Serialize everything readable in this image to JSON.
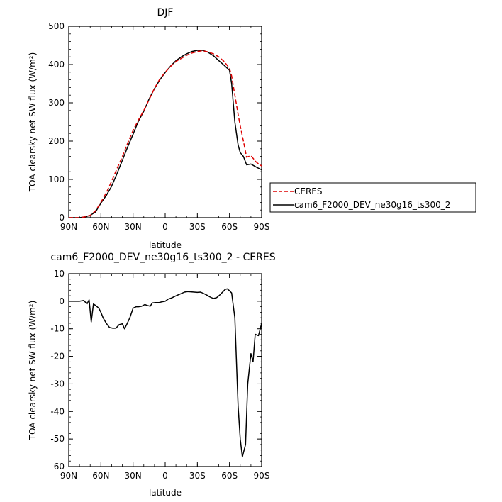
{
  "chart_data": [
    {
      "type": "line",
      "title": "DJF",
      "xlabel": "latitude",
      "ylabel": "TOA clearsky net SW flux (W/m²)",
      "xlim": [
        -90,
        90
      ],
      "ylim": [
        0,
        500
      ],
      "xticks": [
        "90N",
        "60N",
        "30N",
        "0",
        "30S",
        "60S",
        "90S"
      ],
      "yticks": [
        "0",
        "100",
        "200",
        "300",
        "400",
        "500"
      ],
      "legend_position": "right",
      "series": [
        {
          "name": "CERES",
          "style": "dashed",
          "color": "#dd0000",
          "x": [
            -90,
            -80,
            -75,
            -70,
            -65,
            -60,
            -55,
            -50,
            -45,
            -40,
            -35,
            -30,
            -25,
            -20,
            -15,
            -10,
            -5,
            0,
            5,
            10,
            15,
            20,
            25,
            30,
            35,
            40,
            45,
            50,
            55,
            60,
            62,
            65,
            68,
            70,
            73,
            76,
            80,
            85,
            90
          ],
          "y": [
            0,
            0,
            2,
            6,
            18,
            40,
            65,
            95,
            128,
            160,
            195,
            228,
            255,
            280,
            308,
            338,
            362,
            380,
            395,
            408,
            416,
            424,
            430,
            434,
            436,
            433,
            428,
            420,
            408,
            390,
            370,
            320,
            270,
            240,
            200,
            158,
            162,
            145,
            135
          ]
        },
        {
          "name": "cam6_F2000_DEV_ne30g16_ts300_2",
          "style": "solid",
          "color": "#000000",
          "x": [
            -90,
            -80,
            -75,
            -70,
            -65,
            -60,
            -55,
            -50,
            -45,
            -40,
            -35,
            -30,
            -25,
            -20,
            -15,
            -10,
            -5,
            0,
            5,
            10,
            15,
            20,
            25,
            30,
            35,
            40,
            45,
            50,
            55,
            60,
            62,
            65,
            68,
            70,
            73,
            76,
            80,
            85,
            90
          ],
          "y": [
            0,
            0,
            2,
            6,
            15,
            38,
            58,
            82,
            115,
            150,
            185,
            218,
            252,
            278,
            310,
            337,
            360,
            379,
            396,
            410,
            420,
            428,
            434,
            437,
            437,
            432,
            423,
            410,
            398,
            385,
            350,
            250,
            190,
            170,
            160,
            138,
            140,
            132,
            125
          ]
        }
      ]
    },
    {
      "type": "line",
      "title": "cam6_F2000_DEV_ne30g16_ts300_2 - CERES",
      "xlabel": "latitude",
      "ylabel": "TOA clearsky net SW flux (W/m²)",
      "xlim": [
        -90,
        90
      ],
      "ylim": [
        -60,
        10
      ],
      "xticks": [
        "90N",
        "60N",
        "30N",
        "0",
        "30S",
        "60S",
        "90S"
      ],
      "yticks": [
        "10",
        "0",
        "-10",
        "-20",
        "-30",
        "-40",
        "-50",
        "-60"
      ],
      "series": [
        {
          "color": "#000000",
          "x": [
            -90,
            -80,
            -76,
            -73,
            -71,
            -69,
            -67,
            -65,
            -62,
            -60,
            -58,
            -55,
            -52,
            -49,
            -46,
            -43,
            -40,
            -38,
            -36,
            -33,
            -30,
            -27,
            -25,
            -22,
            -19,
            -17,
            -14,
            -12,
            -9,
            -6,
            -3,
            0,
            3,
            6,
            9,
            12,
            15,
            18,
            21,
            24,
            27,
            30,
            33,
            36,
            39,
            42,
            45,
            48,
            51,
            54,
            56,
            58,
            60,
            62,
            65,
            68,
            70,
            72,
            75,
            77,
            80,
            82,
            84,
            87,
            90
          ],
          "y": [
            0,
            0,
            0.3,
            -1,
            0.5,
            -7.5,
            -1,
            -1.5,
            -2.5,
            -4,
            -6,
            -8,
            -9.5,
            -9.8,
            -9.8,
            -8.5,
            -8.2,
            -10,
            -8.5,
            -6,
            -2.5,
            -2,
            -2,
            -1.8,
            -1.2,
            -1.5,
            -1.8,
            -0.6,
            -0.5,
            -0.5,
            -0.2,
            0,
            0.8,
            1.2,
            1.8,
            2.3,
            2.8,
            3.3,
            3.5,
            3.4,
            3.3,
            3.2,
            3.3,
            2.8,
            2.2,
            1.5,
            1.0,
            1.3,
            2.3,
            3.5,
            4.3,
            4.5,
            3.8,
            3.0,
            -6,
            -38,
            -50,
            -56.5,
            -52,
            -30,
            -19,
            -22,
            -12,
            -12.5,
            -8
          ]
        }
      ]
    }
  ],
  "legend": {
    "items": [
      {
        "label": "CERES",
        "style": "dashed",
        "color": "#dd0000"
      },
      {
        "label": "cam6_F2000_DEV_ne30g16_ts300_2",
        "style": "solid",
        "color": "#000000"
      }
    ]
  }
}
